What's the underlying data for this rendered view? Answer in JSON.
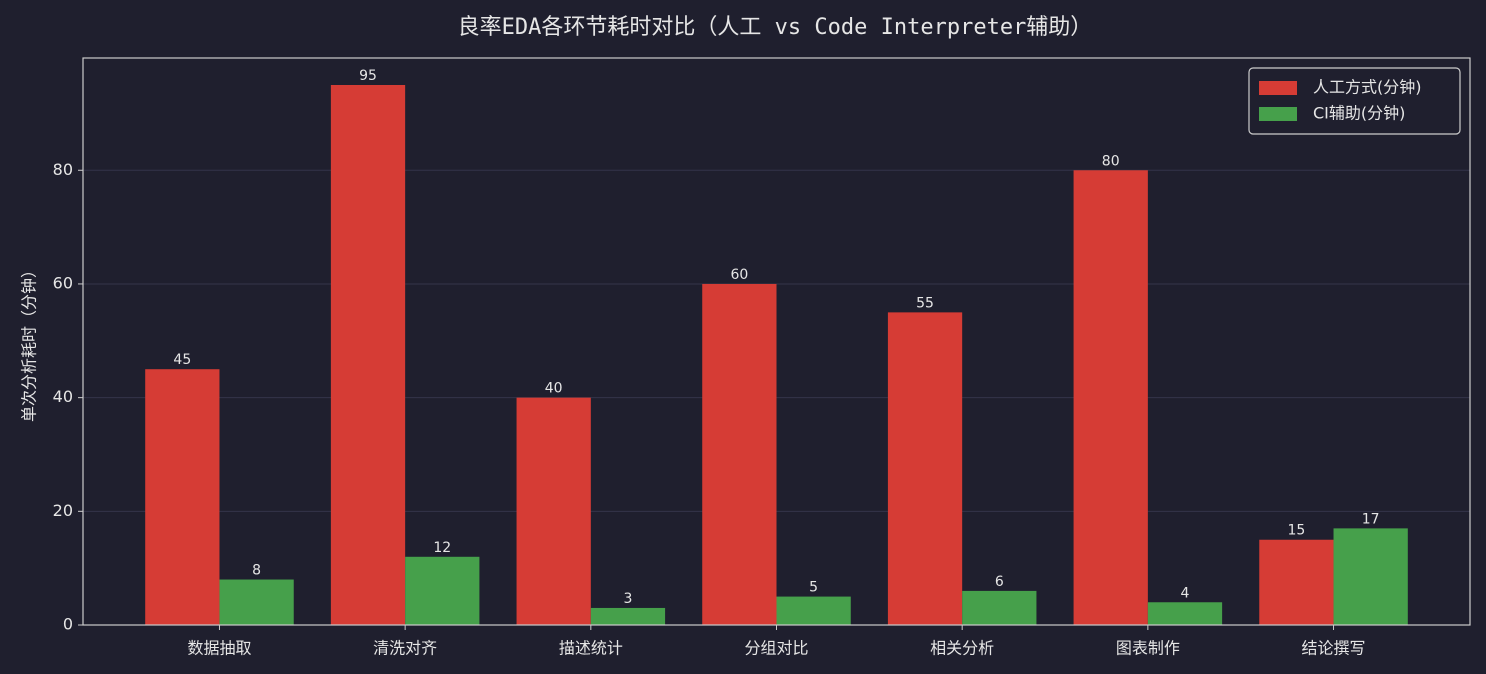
{
  "chart_data": {
    "type": "bar",
    "title": "良率EDA各环节耗时对比（人工 vs Code Interpreter辅助）",
    "y_label": "单次分析耗时（分钟）",
    "categories": [
      "数据抽取",
      "清洗对齐",
      "描述统计",
      "分组对比",
      "相关分析",
      "图表制作",
      "结论撰写"
    ],
    "series": [
      {
        "name": "人工方式(分钟)",
        "color": "#d63c35",
        "values": [
          45,
          95,
          40,
          60,
          55,
          80,
          15
        ]
      },
      {
        "name": "CI辅助(分钟)",
        "color": "#46a04b",
        "values": [
          8,
          12,
          3,
          5,
          6,
          4,
          17
        ]
      }
    ],
    "ylim": [
      0,
      99.75
    ],
    "yticks": [
      0,
      20,
      40,
      60,
      80
    ],
    "grid": true,
    "legend": "upper right"
  }
}
